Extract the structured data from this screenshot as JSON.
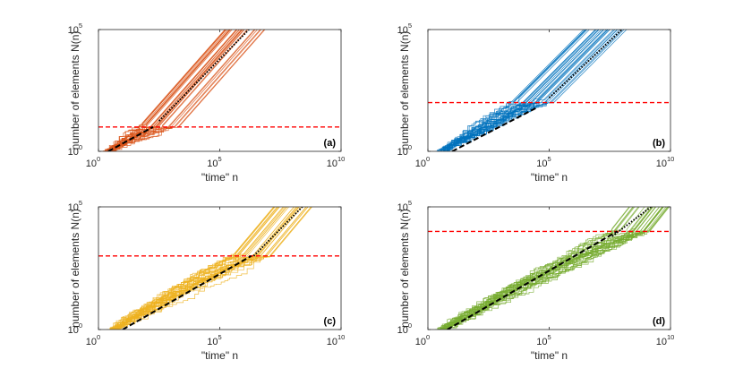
{
  "figure": {
    "background": "#ffffff"
  },
  "chart_data": [
    {
      "type": "line",
      "panel_label": "(a)",
      "color": "#D95319",
      "xlabel": "\"time\" n",
      "ylabel": "number of elements N(n)",
      "xscale": "log",
      "yscale": "log",
      "xlim_exp": [
        0,
        10
      ],
      "ylim_exp": [
        0,
        5
      ],
      "xtick_exps": [
        0,
        5,
        10
      ],
      "ytick_exps": [
        0,
        5
      ],
      "tick_base": "10",
      "xtick_labels": [
        "10",
        "10",
        "10"
      ],
      "xtick_sup": [
        "0",
        "5",
        "10"
      ],
      "ytick_labels": [
        "10",
        "10"
      ],
      "ytick_sup": [
        "0",
        "5"
      ],
      "threshold_exp": 1.0,
      "threshold_color": "#ff0000",
      "dashed_fit": {
        "from_exp": [
          0.4,
          0.0
        ],
        "to_exp": [
          2.25,
          1.0
        ]
      },
      "dotted_fit": {
        "from_exp": [
          2.5,
          1.25
        ],
        "to_exp": [
          6.2,
          5.0
        ]
      },
      "bundle": {
        "runs": 30,
        "start_exp": [
          0.1,
          0.0
        ],
        "cross_exp": [
          2.3,
          1.0
        ],
        "end_exp": [
          5.85,
          5.0
        ]
      }
    },
    {
      "type": "line",
      "panel_label": "(b)",
      "color": "#0072BD",
      "xlabel": "\"time\" n",
      "ylabel": "number of elements N(n)",
      "xscale": "log",
      "yscale": "log",
      "xlim_exp": [
        0,
        10
      ],
      "ylim_exp": [
        0,
        5
      ],
      "xtick_exps": [
        0,
        5,
        10
      ],
      "ytick_exps": [
        0,
        5
      ],
      "tick_base": "10",
      "xtick_labels": [
        "10",
        "10",
        "10"
      ],
      "xtick_sup": [
        "0",
        "5",
        "10"
      ],
      "ytick_labels": [
        "10",
        "10"
      ],
      "ytick_sup": [
        "0",
        "5"
      ],
      "threshold_exp": 2.0,
      "threshold_color": "#ff0000",
      "dashed_fit": {
        "from_exp": [
          1.0,
          0.0
        ],
        "to_exp": [
          4.5,
          1.8
        ]
      },
      "dotted_fit": {
        "from_exp": [
          5.0,
          2.2
        ],
        "to_exp": [
          8.0,
          5.0
        ]
      },
      "bundle": {
        "runs": 30,
        "start_exp": [
          0.3,
          0.0
        ],
        "cross_exp": [
          4.2,
          2.0
        ],
        "end_exp": [
          7.2,
          5.0
        ]
      }
    },
    {
      "type": "line",
      "panel_label": "(c)",
      "color": "#EDB120",
      "xlabel": "\"time\" n",
      "ylabel": "number of elements N(n)",
      "xscale": "log",
      "yscale": "log",
      "xlim_exp": [
        0,
        10
      ],
      "ylim_exp": [
        0,
        5
      ],
      "xtick_exps": [
        0,
        5,
        10
      ],
      "ytick_exps": [
        0,
        5
      ],
      "tick_base": "10",
      "xtick_labels": [
        "10",
        "10",
        "10"
      ],
      "xtick_sup": [
        "0",
        "5",
        "10"
      ],
      "ytick_labels": [
        "10",
        "10"
      ],
      "ytick_sup": [
        "0",
        "5"
      ],
      "threshold_exp": 3.0,
      "threshold_color": "#ff0000",
      "dashed_fit": {
        "from_exp": [
          1.0,
          0.0
        ],
        "to_exp": [
          6.3,
          3.0
        ]
      },
      "dotted_fit": {
        "from_exp": [
          6.4,
          3.0
        ],
        "to_exp": [
          8.4,
          5.0
        ]
      },
      "bundle": {
        "runs": 30,
        "start_exp": [
          0.3,
          0.0
        ],
        "cross_exp": [
          6.3,
          3.0
        ],
        "end_exp": [
          8.0,
          5.0
        ]
      }
    },
    {
      "type": "line",
      "panel_label": "(d)",
      "color": "#77AC30",
      "xlabel": "\"time\" n",
      "ylabel": "number of elements N(n)",
      "xscale": "log",
      "yscale": "log",
      "xlim_exp": [
        0,
        10
      ],
      "ylim_exp": [
        0,
        5
      ],
      "xtick_exps": [
        0,
        5,
        10
      ],
      "ytick_exps": [
        0,
        5
      ],
      "tick_base": "10",
      "xtick_labels": [
        "10",
        "10",
        "10"
      ],
      "xtick_sup": [
        "0",
        "5",
        "10"
      ],
      "ytick_labels": [
        "10",
        "10"
      ],
      "ytick_sup": [
        "0",
        "5"
      ],
      "threshold_exp": 4.0,
      "threshold_color": "#ff0000",
      "dashed_fit": {
        "from_exp": [
          0.8,
          0.0
        ],
        "to_exp": [
          7.8,
          4.0
        ]
      },
      "dotted_fit": {
        "from_exp": [
          7.6,
          3.8
        ],
        "to_exp": [
          9.2,
          5.0
        ]
      },
      "bundle": {
        "runs": 30,
        "start_exp": [
          0.3,
          0.0
        ],
        "cross_exp": [
          8.2,
          4.0
        ],
        "end_exp": [
          9.0,
          5.0
        ]
      }
    }
  ]
}
